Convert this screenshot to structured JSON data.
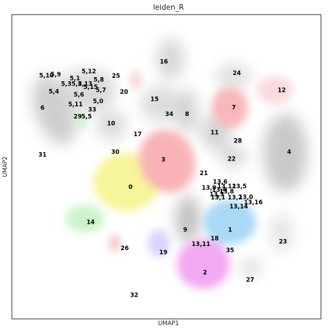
{
  "chart_data": {
    "type": "scatter",
    "title": "leiden_R",
    "xlabel": "UMAP1",
    "ylabel": "UMAP2",
    "xlim": [
      0,
      100
    ],
    "ylim": [
      0,
      100
    ],
    "grid": false,
    "ticks": "none",
    "legend": "on data",
    "clusters": [
      {
        "name": "16",
        "x": 49.2,
        "y": 84.6
      },
      {
        "name": "24",
        "x": 72.8,
        "y": 80.8
      },
      {
        "name": "12",
        "x": 87.3,
        "y": 75.2
      },
      {
        "name": "5,10",
        "x": 11.2,
        "y": 80.0
      },
      {
        "name": "5,9",
        "x": 14.2,
        "y": 80.4
      },
      {
        "name": "5,12",
        "x": 24.9,
        "y": 81.4
      },
      {
        "name": "25",
        "x": 33.7,
        "y": 79.9
      },
      {
        "name": "5,1",
        "x": 20.4,
        "y": 79.1
      },
      {
        "name": "5,8",
        "x": 28.1,
        "y": 78.7
      },
      {
        "name": "5,3",
        "x": 17.6,
        "y": 77.3
      },
      {
        "name": "5,2",
        "x": 21.0,
        "y": 77.3
      },
      {
        "name": "5,13",
        "x": 23.7,
        "y": 77.3
      },
      {
        "name": "5,15",
        "x": 25.5,
        "y": 76.3
      },
      {
        "name": "5,7",
        "x": 28.8,
        "y": 75.2
      },
      {
        "name": "20",
        "x": 36.3,
        "y": 74.7
      },
      {
        "name": "5,4",
        "x": 13.6,
        "y": 74.8
      },
      {
        "name": "5,6",
        "x": 21.7,
        "y": 73.7
      },
      {
        "name": "5,0",
        "x": 27.9,
        "y": 71.6
      },
      {
        "name": "15",
        "x": 46.2,
        "y": 72.3
      },
      {
        "name": "5,11",
        "x": 20.6,
        "y": 70.6
      },
      {
        "name": "6",
        "x": 9.9,
        "y": 69.4
      },
      {
        "name": "7",
        "x": 71.8,
        "y": 69.5
      },
      {
        "name": "33",
        "x": 26.0,
        "y": 68.8
      },
      {
        "name": "34",
        "x": 50.9,
        "y": 67.3
      },
      {
        "name": "8",
        "x": 56.7,
        "y": 67.3
      },
      {
        "name": "29",
        "x": 21.3,
        "y": 66.5
      },
      {
        "name": "5,5",
        "x": 24.2,
        "y": 66.5
      },
      {
        "name": "10",
        "x": 32.1,
        "y": 64.3
      },
      {
        "name": "11",
        "x": 65.6,
        "y": 61.3
      },
      {
        "name": "17",
        "x": 40.7,
        "y": 60.7
      },
      {
        "name": "28",
        "x": 73.1,
        "y": 58.6
      },
      {
        "name": "30",
        "x": 33.5,
        "y": 54.9
      },
      {
        "name": "4",
        "x": 89.7,
        "y": 54.9
      },
      {
        "name": "31",
        "x": 9.9,
        "y": 54.0
      },
      {
        "name": "3",
        "x": 49.0,
        "y": 52.4
      },
      {
        "name": "22",
        "x": 71.1,
        "y": 52.6
      },
      {
        "name": "21",
        "x": 62.1,
        "y": 47.9
      },
      {
        "name": "13,6",
        "x": 67.4,
        "y": 45.1
      },
      {
        "name": "0",
        "x": 38.4,
        "y": 43.4
      },
      {
        "name": "13,9",
        "x": 63.8,
        "y": 43.1
      },
      {
        "name": "13,12",
        "x": 69.5,
        "y": 43.6
      },
      {
        "name": "13,5",
        "x": 73.6,
        "y": 43.6
      },
      {
        "name": "13,4",
        "x": 67.1,
        "y": 42.5
      },
      {
        "name": "13,8",
        "x": 69.5,
        "y": 41.9
      },
      {
        "name": "13,3",
        "x": 66.3,
        "y": 41.0
      },
      {
        "name": "13,0",
        "x": 75.7,
        "y": 40.1
      },
      {
        "name": "13,2",
        "x": 72.2,
        "y": 39.9
      },
      {
        "name": "13,1",
        "x": 66.7,
        "y": 39.9
      },
      {
        "name": "13,16",
        "x": 78.1,
        "y": 38.3
      },
      {
        "name": "13,14",
        "x": 73.4,
        "y": 37.0
      },
      {
        "name": "14",
        "x": 25.5,
        "y": 31.8
      },
      {
        "name": "9",
        "x": 56.1,
        "y": 29.3
      },
      {
        "name": "1",
        "x": 70.6,
        "y": 29.3
      },
      {
        "name": "18",
        "x": 65.6,
        "y": 26.5
      },
      {
        "name": "23",
        "x": 87.7,
        "y": 25.5
      },
      {
        "name": "13,11",
        "x": 61.2,
        "y": 24.7
      },
      {
        "name": "26",
        "x": 36.5,
        "y": 23.3
      },
      {
        "name": "35",
        "x": 70.6,
        "y": 22.6
      },
      {
        "name": "19",
        "x": 49.0,
        "y": 21.9
      },
      {
        "name": "2",
        "x": 62.5,
        "y": 15.3
      },
      {
        "name": "27",
        "x": 77.1,
        "y": 12.9
      },
      {
        "name": "32",
        "x": 39.6,
        "y": 7.9
      }
    ]
  }
}
